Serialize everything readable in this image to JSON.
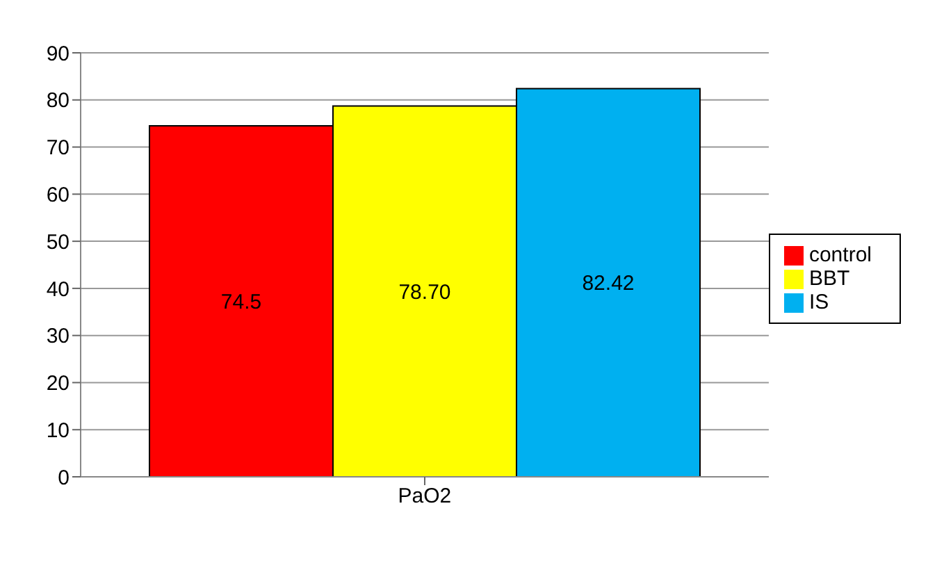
{
  "chart_data": {
    "type": "bar",
    "categories": [
      "PaO2"
    ],
    "series": [
      {
        "name": "control",
        "color": "#ff0000",
        "values": [
          74.5
        ],
        "value_labels": [
          "74.5"
        ]
      },
      {
        "name": "BBT",
        "color": "#ffff00",
        "values": [
          78.7
        ],
        "value_labels": [
          "78.70"
        ]
      },
      {
        "name": "IS",
        "color": "#00b0f0",
        "values": [
          82.42
        ],
        "value_labels": [
          "82.42"
        ]
      }
    ],
    "ylim": [
      0,
      90
    ],
    "yticks": [
      0,
      10,
      20,
      30,
      40,
      50,
      60,
      70,
      80,
      90
    ],
    "grid": "y",
    "legend": "right"
  }
}
